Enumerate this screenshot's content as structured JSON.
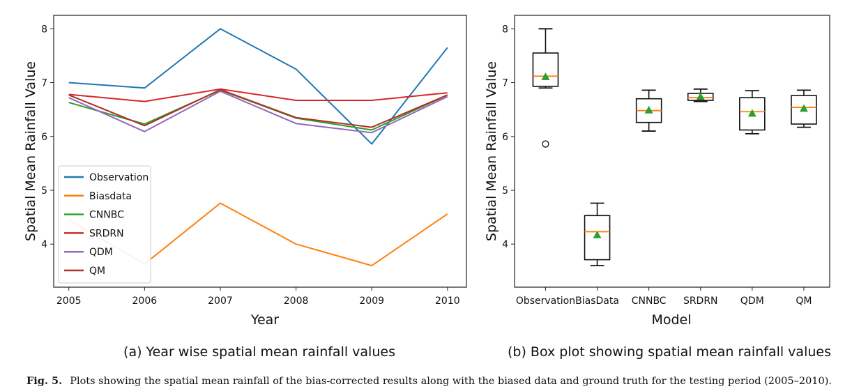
{
  "chart_data": [
    {
      "type": "line",
      "x": [
        2005,
        2006,
        2007,
        2008,
        2009,
        2010
      ],
      "xlabel": "Year",
      "ylabel": "Spatial Mean Rainfall Value",
      "ylim": [
        3.2,
        8.25
      ],
      "yticks": [
        "4",
        "5",
        "6",
        "7",
        "8"
      ],
      "xticks": [
        "2005",
        "2006",
        "2007",
        "2008",
        "2009",
        "2010"
      ],
      "legend_position": "lower-left",
      "series": [
        {
          "name": "Observation",
          "color": "#1f77b4",
          "values": [
            7.0,
            6.9,
            8.0,
            7.25,
            5.86,
            7.65
          ]
        },
        {
          "name": "Biasdata",
          "color": "#ff7f0e",
          "values": [
            4.45,
            3.63,
            4.76,
            4.0,
            3.6,
            4.56
          ]
        },
        {
          "name": "CNNBC",
          "color": "#2ca02c",
          "values": [
            6.63,
            6.23,
            6.86,
            6.34,
            6.12,
            6.77
          ]
        },
        {
          "name": "SRDRN",
          "color": "#d62728",
          "values": [
            6.78,
            6.65,
            6.88,
            6.67,
            6.67,
            6.81
          ]
        },
        {
          "name": "QDM",
          "color": "#9467bd",
          "values": [
            6.72,
            6.09,
            6.84,
            6.24,
            6.07,
            6.74
          ]
        },
        {
          "name": "QM",
          "color": "#b03028",
          "values": [
            6.77,
            6.2,
            6.87,
            6.35,
            6.17,
            6.77
          ]
        }
      ],
      "subcaption": "(a) Year wise spatial mean rainfall values"
    },
    {
      "type": "box",
      "categories": [
        "Observation",
        "BiasData",
        "CNNBC",
        "SRDRN",
        "QDM",
        "QM"
      ],
      "xlabel": "Model",
      "ylabel": "Spatial Mean Rainfall Value",
      "ylim": [
        3.2,
        8.25
      ],
      "yticks": [
        "4",
        "5",
        "6",
        "7",
        "8"
      ],
      "boxes": [
        {
          "whisker_low": 6.9,
          "q1": 6.93,
          "median": 7.12,
          "q3": 7.55,
          "whisker_high": 8.0,
          "mean": 7.11,
          "outliers": [
            5.86
          ]
        },
        {
          "whisker_low": 3.6,
          "q1": 3.71,
          "median": 4.23,
          "q3": 4.53,
          "whisker_high": 4.76,
          "mean": 4.17,
          "outliers": []
        },
        {
          "whisker_low": 6.1,
          "q1": 6.26,
          "median": 6.48,
          "q3": 6.7,
          "whisker_high": 6.86,
          "mean": 6.49,
          "outliers": []
        },
        {
          "whisker_low": 6.65,
          "q1": 6.67,
          "median": 6.72,
          "q3": 6.8,
          "whisker_high": 6.88,
          "mean": 6.74,
          "outliers": []
        },
        {
          "whisker_low": 6.05,
          "q1": 6.12,
          "median": 6.46,
          "q3": 6.72,
          "whisker_high": 6.85,
          "mean": 6.43,
          "outliers": []
        },
        {
          "whisker_low": 6.17,
          "q1": 6.23,
          "median": 6.54,
          "q3": 6.76,
          "whisker_high": 6.86,
          "mean": 6.52,
          "outliers": []
        }
      ],
      "median_color": "#ff7f0e",
      "mean_color": "#2ca02c",
      "subcaption": "(b) Box plot showing spatial mean rainfall values"
    }
  ],
  "caption": {
    "label": "Fig. 5.",
    "text": "Plots showing the spatial mean rainfall of the bias-corrected results along with the biased data and ground truth for the testing period (2005–2010)."
  }
}
